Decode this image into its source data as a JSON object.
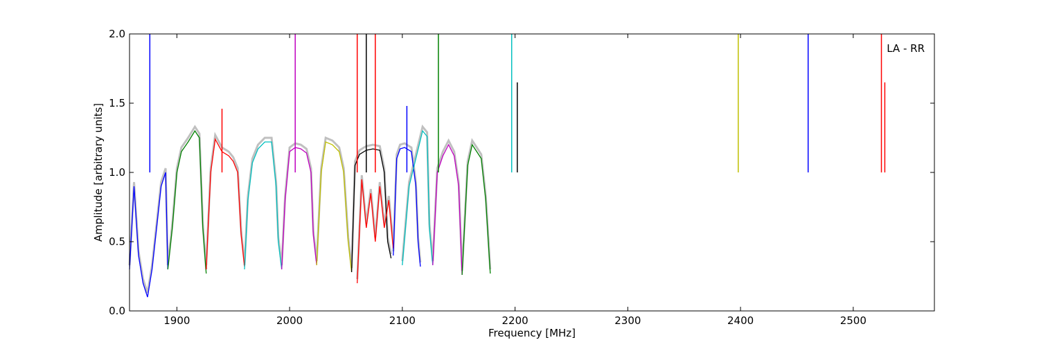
{
  "chart_data": {
    "type": "line",
    "xlabel": "Frequency [MHz]",
    "ylabel": "Amplitude [arbitrary units]",
    "annotation": "LA - RR",
    "xlim": [
      1858,
      2572
    ],
    "ylim": [
      0.0,
      2.0
    ],
    "x_ticks": [
      1900,
      2000,
      2100,
      2200,
      2300,
      2400,
      2500
    ],
    "y_ticks": [
      0.0,
      0.5,
      1.0,
      1.5,
      2.0
    ],
    "x_tick_labels": [
      "1900",
      "2000",
      "2100",
      "2200",
      "2300",
      "2400",
      "2500"
    ],
    "y_tick_labels": [
      "0.0",
      "0.5",
      "1.0",
      "1.5",
      "2.0"
    ],
    "background_color": "#c0c0c0",
    "grid": false,
    "series": [
      {
        "color": "#0000ff",
        "x": [
          1858,
          1862,
          1866,
          1870,
          1874,
          1878,
          1882,
          1886,
          1890,
          1892
        ],
        "y": [
          0.3,
          0.9,
          0.4,
          0.2,
          0.1,
          0.3,
          0.6,
          0.9,
          1.0,
          0.3
        ]
      },
      {
        "color": "#008000",
        "x": [
          1892,
          1896,
          1900,
          1904,
          1910,
          1916,
          1920,
          1923,
          1926
        ],
        "y": [
          0.3,
          0.6,
          1.0,
          1.15,
          1.22,
          1.3,
          1.25,
          0.6,
          0.27
        ]
      },
      {
        "color": "#ff0000",
        "x": [
          1926,
          1930,
          1934,
          1940,
          1946,
          1950,
          1954,
          1957,
          1960
        ],
        "y": [
          0.3,
          1.0,
          1.24,
          1.15,
          1.12,
          1.08,
          1.0,
          0.55,
          0.32
        ]
      },
      {
        "color": "#00bfbf",
        "x": [
          1960,
          1963,
          1967,
          1972,
          1978,
          1984,
          1988,
          1990,
          1993
        ],
        "y": [
          0.3,
          0.8,
          1.07,
          1.17,
          1.22,
          1.22,
          0.9,
          0.5,
          0.3
        ]
      },
      {
        "color": "#bf00bf",
        "x": [
          1993,
          1996,
          2000,
          2005,
          2010,
          2015,
          2019,
          2021,
          2024
        ],
        "y": [
          0.3,
          0.8,
          1.15,
          1.18,
          1.17,
          1.14,
          1.0,
          0.55,
          0.33
        ]
      },
      {
        "color": "#bfbf00",
        "x": [
          2024,
          2028,
          2032,
          2038,
          2044,
          2048,
          2052,
          2055
        ],
        "y": [
          0.33,
          1.0,
          1.22,
          1.2,
          1.15,
          1.0,
          0.5,
          0.28
        ]
      },
      {
        "color": "#000000",
        "x": [
          2055,
          2058,
          2062,
          2068,
          2074,
          2080,
          2084,
          2087,
          2090
        ],
        "y": [
          0.28,
          1.05,
          1.13,
          1.16,
          1.17,
          1.16,
          1.0,
          0.5,
          0.38
        ]
      },
      {
        "color": "#ff0000",
        "x": [
          2060,
          2064,
          2068,
          2072,
          2076,
          2080,
          2084,
          2088,
          2092
        ],
        "y": [
          0.2,
          0.95,
          0.6,
          0.85,
          0.5,
          0.9,
          0.6,
          0.8,
          0.45
        ]
      },
      {
        "color": "#0000ff",
        "x": [
          2092,
          2095,
          2098,
          2102,
          2108,
          2112,
          2114,
          2116
        ],
        "y": [
          0.4,
          1.1,
          1.17,
          1.18,
          1.15,
          0.9,
          0.5,
          0.32
        ]
      },
      {
        "color": "#00bfbf",
        "x": [
          2100,
          2106,
          2112,
          2118,
          2122,
          2124,
          2127
        ],
        "y": [
          0.33,
          0.9,
          1.1,
          1.3,
          1.26,
          0.6,
          0.33
        ]
      },
      {
        "color": "#bf00bf",
        "x": [
          2127,
          2131,
          2136,
          2141,
          2146,
          2150,
          2153
        ],
        "y": [
          0.33,
          1.0,
          1.12,
          1.2,
          1.12,
          0.9,
          0.26
        ]
      },
      {
        "color": "#008000",
        "x": [
          2153,
          2158,
          2162,
          2166,
          2170,
          2174,
          2178
        ],
        "y": [
          0.26,
          1.05,
          1.2,
          1.15,
          1.1,
          0.8,
          0.27
        ]
      }
    ],
    "spikes": [
      {
        "color": "#0000ff",
        "x": 1876,
        "y": 2.0
      },
      {
        "color": "#ff0000",
        "x": 1940,
        "y": 1.46
      },
      {
        "color": "#bf00bf",
        "x": 2005,
        "y": 2.0
      },
      {
        "color": "#ff0000",
        "x": 2060,
        "y": 2.0
      },
      {
        "color": "#000000",
        "x": 2068,
        "y": 2.0
      },
      {
        "color": "#ff0000",
        "x": 2076,
        "y": 2.0
      },
      {
        "color": "#0000ff",
        "x": 2104,
        "y": 1.48
      },
      {
        "color": "#008000",
        "x": 2132,
        "y": 2.0
      },
      {
        "color": "#00bfbf",
        "x": 2197,
        "y": 2.0
      },
      {
        "color": "#000000",
        "x": 2202,
        "y": 1.65
      },
      {
        "color": "#bfbf00",
        "x": 2398,
        "y": 2.0
      },
      {
        "color": "#0000ff",
        "x": 2460,
        "y": 2.0
      },
      {
        "color": "#ff0000",
        "x": 2525,
        "y": 2.0
      },
      {
        "color": "#ff0000",
        "x": 2528,
        "y": 1.65
      }
    ]
  }
}
